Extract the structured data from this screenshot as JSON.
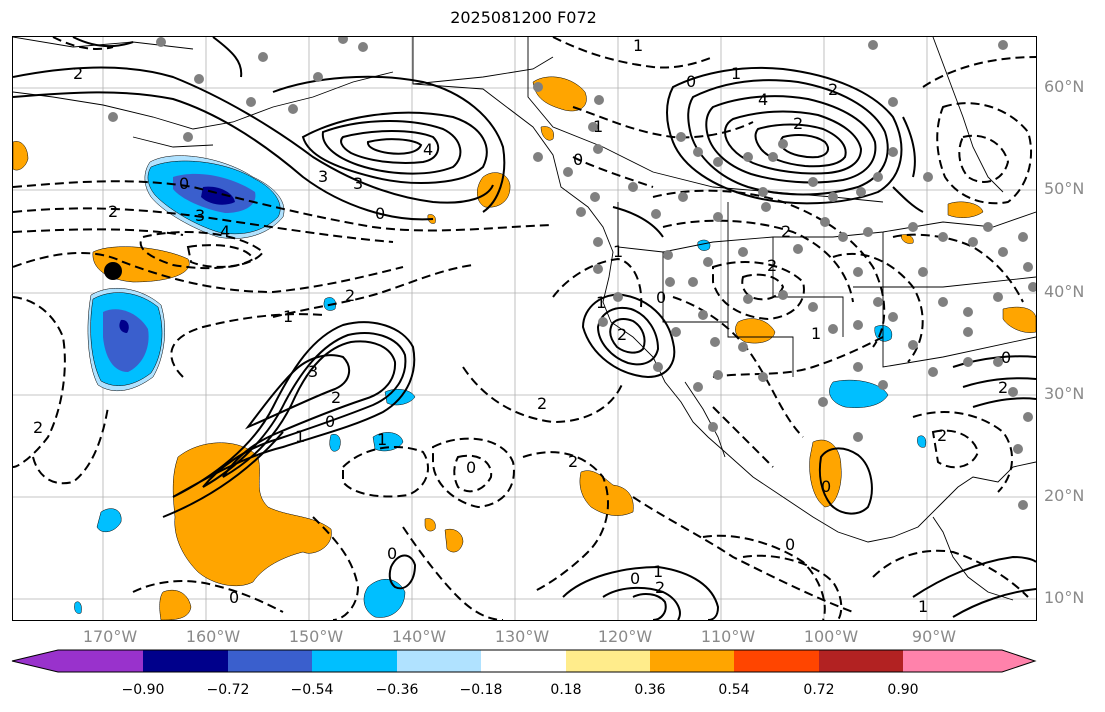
{
  "title": "2025081200 F072",
  "lat_labels": [
    "60°N",
    "50°N",
    "40°N",
    "30°N",
    "20°N",
    "10°N"
  ],
  "lon_labels": [
    "170°W",
    "160°W",
    "150°W",
    "140°W",
    "130°W",
    "120°W",
    "110°W",
    "100°W",
    "90°W"
  ],
  "colorbar": {
    "ticks": [
      "−0.90",
      "−0.72",
      "−0.54",
      "−0.36",
      "−0.18",
      "0.18",
      "0.36",
      "0.54",
      "0.72",
      "0.90"
    ],
    "colors": [
      "#9932cc",
      "#00008b",
      "#3a5fcd",
      "#00bfff",
      "#b0e2ff",
      "#ffffff",
      "#ffec8b",
      "#ffa500",
      "#ff4500",
      "#b22222",
      "#ff82ab"
    ]
  },
  "contour_labels": {
    "l1": "2",
    "l2": "3",
    "l3": "4",
    "l4": "2",
    "l5": "3",
    "l6": "0",
    "l7": "0",
    "l8": "2",
    "l9": "3",
    "l10": "4",
    "l11": "1",
    "l12": "2",
    "l13": "3",
    "l14": "2",
    "l15": "1",
    "l16": "0",
    "l17": "2",
    "l18": "1",
    "l19": "0",
    "l20": "1",
    "l21": "2",
    "l22": "4",
    "l23": "0",
    "l24": "1",
    "l25": "2",
    "l26": "2",
    "l27": "1",
    "l28": "0",
    "l29": "2",
    "l30": "1",
    "l31": "0",
    "l32": "1",
    "l33": "2",
    "l34": "2",
    "l35": "1",
    "l36": "2",
    "l37": "0",
    "l38": "0",
    "l39": "0",
    "l40": "1",
    "l41": "0",
    "l42": "2",
    "l43": "0",
    "l44": "1",
    "l45": "2",
    "l46": "2",
    "l47": "0"
  }
}
